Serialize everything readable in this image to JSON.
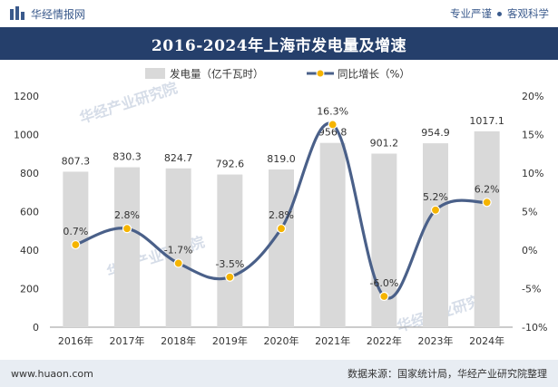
{
  "header": {
    "brand": "华经情报网",
    "tagline_left": "专业严谨",
    "tagline_right": "客观科学",
    "logo": "huajing-logo-icon"
  },
  "footer": {
    "url": "www.huaon.com",
    "source": "数据来源：国家统计局，华经产业研究院整理"
  },
  "watermark": "华经产业研究院",
  "colors": {
    "bar": "#d9d9d9",
    "line": "#4a6089",
    "point": "#f5b400",
    "title_bg": "#253f6b"
  },
  "chart_data": {
    "type": "bar",
    "title": "2016-2024年上海市发电量及增速",
    "categories": [
      "2016年",
      "2017年",
      "2018年",
      "2019年",
      "2020年",
      "2021年",
      "2022年",
      "2023年",
      "2024年"
    ],
    "series": [
      {
        "name": "发电量（亿千瓦时）",
        "type": "bar",
        "axis": "left",
        "values": [
          807.3,
          830.3,
          824.7,
          792.6,
          819.0,
          956.8,
          901.2,
          954.9,
          1017.1
        ],
        "labels": [
          "807.3",
          "830.3",
          "824.7",
          "792.6",
          "819.0",
          "956.8",
          "901.2",
          "954.9",
          "1017.1"
        ]
      },
      {
        "name": "同比增长（%）",
        "type": "line",
        "axis": "right",
        "values": [
          0.7,
          2.8,
          -1.7,
          -3.5,
          2.8,
          16.3,
          -6.0,
          5.2,
          6.2
        ],
        "labels": [
          "0.7%",
          "2.8%",
          "-1.7%",
          "-3.5%",
          "2.8%",
          "16.3%",
          "-6.0%",
          "5.2%",
          "6.2%"
        ]
      }
    ],
    "y_left": {
      "min": 0,
      "max": 1200,
      "ticks": [
        0,
        200,
        400,
        600,
        800,
        1000,
        1200
      ],
      "tick_labels": [
        "0",
        "200",
        "400",
        "600",
        "800",
        "1000",
        "1200"
      ]
    },
    "y_right": {
      "min": -10,
      "max": 20,
      "ticks": [
        -10,
        -5,
        0,
        5,
        10,
        15,
        20
      ],
      "tick_labels": [
        "-10%",
        "-5%",
        "0%",
        "5%",
        "10%",
        "15%",
        "20%"
      ]
    },
    "grid": false,
    "legend_position": "top-center",
    "line_smooth": true
  }
}
